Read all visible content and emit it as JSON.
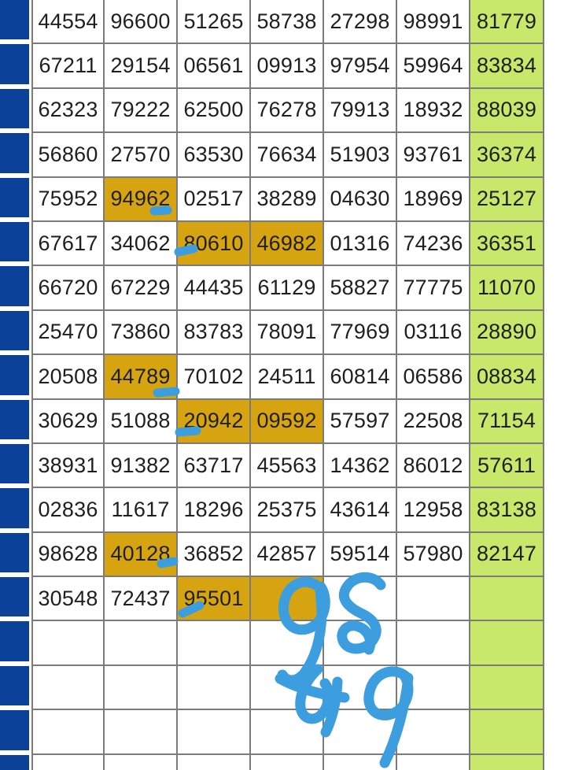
{
  "colors": {
    "row_marker_blue": "#0c4199",
    "highlight_orange": "#d7a411",
    "result_green": "#c7e86a",
    "marker_blue": "#3c9edf",
    "grid_border": "#7b7b7b",
    "text": "#1f1f1f"
  },
  "grid": {
    "rows": [
      {
        "cells": [
          "44554",
          "96600",
          "51265",
          "58738",
          "27298",
          "98991"
        ],
        "result": "81779"
      },
      {
        "cells": [
          "67211",
          "29154",
          "06561",
          "09913",
          "97954",
          "59964"
        ],
        "result": "83834"
      },
      {
        "cells": [
          "62323",
          "79222",
          "62500",
          "76278",
          "79913",
          "18932"
        ],
        "result": "88039"
      },
      {
        "cells": [
          "56860",
          "27570",
          "63530",
          "76634",
          "51903",
          "93761"
        ],
        "result": "36374"
      },
      {
        "cells": [
          "75952",
          "94962",
          "02517",
          "38289",
          "04630",
          "18969"
        ],
        "result": "25127"
      },
      {
        "cells": [
          "67617",
          "34062",
          "80610",
          "46982",
          "01316",
          "74236"
        ],
        "result": "36351"
      },
      {
        "cells": [
          "66720",
          "67229",
          "44435",
          "61129",
          "58827",
          "77775"
        ],
        "result": "11070"
      },
      {
        "cells": [
          "25470",
          "73860",
          "83783",
          "78091",
          "77969",
          "03116"
        ],
        "result": "28890"
      },
      {
        "cells": [
          "20508",
          "44789",
          "70102",
          "24511",
          "60814",
          "06586"
        ],
        "result": "08834"
      },
      {
        "cells": [
          "30629",
          "51088",
          "20942",
          "09592",
          "57597",
          "22508"
        ],
        "result": "71154"
      },
      {
        "cells": [
          "38931",
          "91382",
          "63717",
          "45563",
          "14362",
          "86012"
        ],
        "result": "57611"
      },
      {
        "cells": [
          "02836",
          "11617",
          "18296",
          "25375",
          "43614",
          "12958"
        ],
        "result": "83138"
      },
      {
        "cells": [
          "98628",
          "40128",
          "36852",
          "42857",
          "59514",
          "57980"
        ],
        "result": "82147"
      },
      {
        "cells": [
          "30548",
          "72437",
          "95501",
          "",
          "",
          ""
        ],
        "result": ""
      },
      {
        "cells": [
          "",
          "",
          "",
          "",
          "",
          ""
        ],
        "result": ""
      },
      {
        "cells": [
          "",
          "",
          "",
          "",
          "",
          ""
        ],
        "result": ""
      },
      {
        "cells": [
          "",
          "",
          "",
          "",
          "",
          ""
        ],
        "result": ""
      },
      {
        "cells": [
          "",
          "",
          "",
          "",
          "",
          ""
        ],
        "result": ""
      }
    ],
    "highlighted_cells": [
      [
        4,
        1
      ],
      [
        5,
        2
      ],
      [
        5,
        3
      ],
      [
        8,
        1
      ],
      [
        9,
        2
      ],
      [
        9,
        3
      ],
      [
        12,
        1
      ],
      [
        13,
        2
      ],
      [
        13,
        3
      ]
    ],
    "underlined_values": [
      "94962",
      "80610",
      "44789",
      "20942",
      "40128",
      "95501"
    ]
  },
  "annotations": {
    "handwritten_numbers": [
      "98",
      "49"
    ]
  }
}
